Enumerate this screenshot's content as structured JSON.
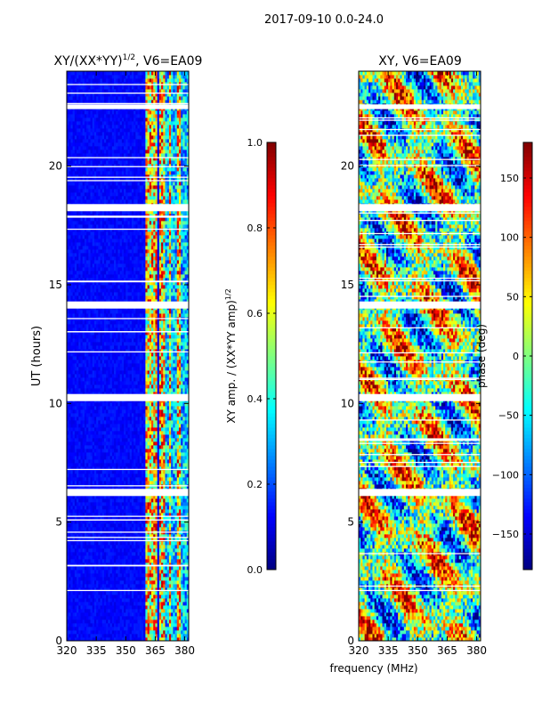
{
  "suptitle": "2017-09-10 0.0-24.0",
  "chart_data": [
    {
      "type": "heatmap",
      "title": "XY/(XX*YY)",
      "title_sup": "1/2",
      "title_suffix": ", V6=EA09",
      "xlabel": "",
      "ylabel": "UT (hours)",
      "xlim": [
        320,
        382
      ],
      "ylim": [
        0,
        24
      ],
      "xticks": [
        320,
        335,
        350,
        365,
        380
      ],
      "yticks": [
        0,
        5,
        10,
        15,
        20
      ],
      "colormap": "jet",
      "colorbar": {
        "label": "XY amp. / (XX*YY amp)",
        "label_sup": "1/2",
        "range": [
          0.0,
          1.0
        ],
        "ticks": [
          "0.0",
          "0.2",
          "0.4",
          "0.6",
          "0.8",
          "1.0"
        ],
        "tick_values": [
          0.0,
          0.2,
          0.4,
          0.6,
          0.8,
          1.0
        ]
      },
      "bright_bands_mhz": [
        [
          360,
          363.5
        ],
        [
          364.5,
          366
        ],
        [
          367,
          370
        ],
        [
          372,
          373
        ],
        [
          376,
          378
        ]
      ],
      "missing_time_ranges_h": [
        [
          6.1,
          6.4
        ],
        [
          10.1,
          10.4
        ],
        [
          14.0,
          14.3
        ],
        [
          18.1,
          18.4
        ],
        [
          22.4,
          22.6
        ]
      ]
    },
    {
      "type": "heatmap",
      "title": "XY, V6=EA09",
      "xlabel": "frequency (MHz)",
      "ylabel": "",
      "xlim": [
        320,
        382
      ],
      "ylim": [
        0,
        24
      ],
      "xticks": [
        320,
        335,
        350,
        365,
        380
      ],
      "yticks": [
        0,
        5,
        10,
        15,
        20
      ],
      "colormap": "jet",
      "colorbar": {
        "label": "phase (deg)",
        "range": [
          -180,
          180
        ],
        "ticks": [
          "−150",
          "−100",
          "−50",
          "0",
          "50",
          "100",
          "150"
        ],
        "tick_values": [
          -150,
          -100,
          -50,
          0,
          50,
          100,
          150
        ]
      },
      "missing_time_ranges_h": [
        [
          6.1,
          6.4
        ],
        [
          10.1,
          10.4
        ],
        [
          14.0,
          14.3
        ],
        [
          18.1,
          18.4
        ],
        [
          22.4,
          22.6
        ]
      ]
    }
  ]
}
